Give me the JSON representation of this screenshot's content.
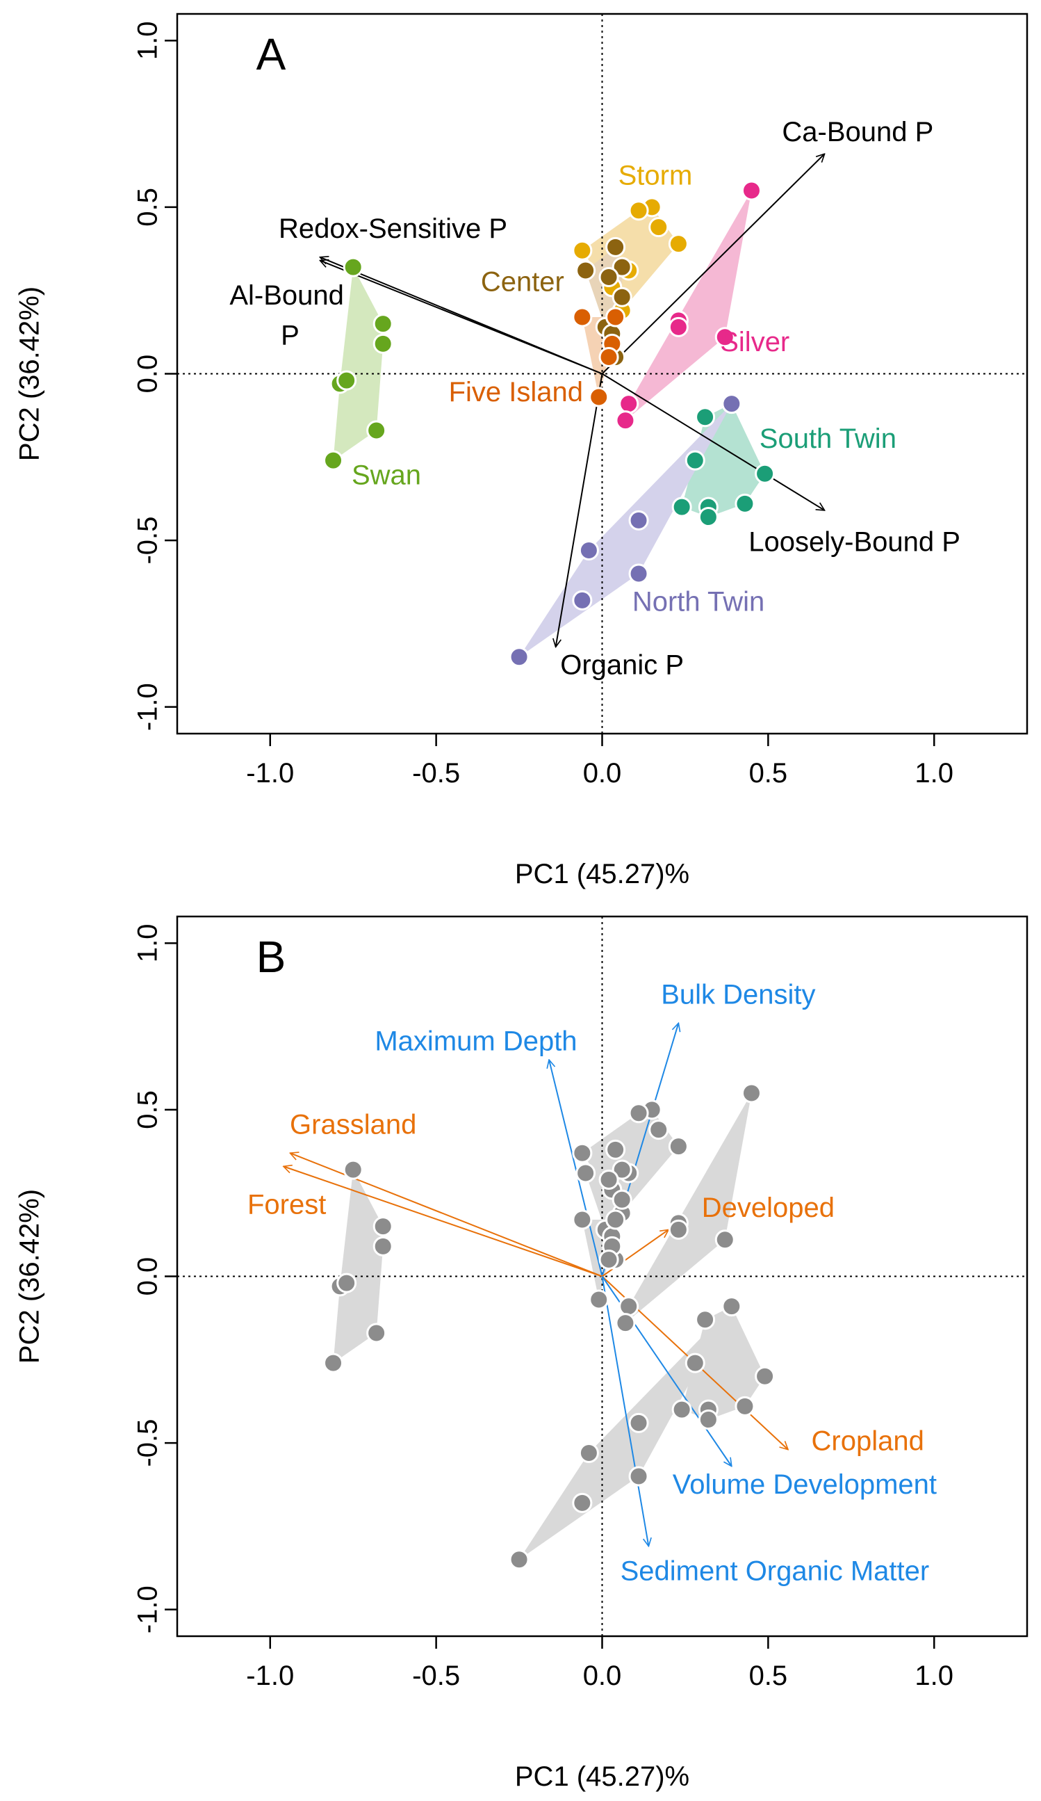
{
  "chart_data": [
    {
      "panel_label": "A",
      "type": "biplot",
      "xlabel": "PC1 (45.27)%",
      "ylabel": "PC2 (36.42%)",
      "xlim": [
        -1.28,
        1.28
      ],
      "ylim": [
        -1.08,
        1.08
      ],
      "xticks": [
        -1.0,
        -0.5,
        0.0,
        0.5,
        1.0
      ],
      "yticks": [
        -1.0,
        -0.5,
        0.0,
        0.5,
        1.0
      ],
      "xtick_labels": [
        "-1.0",
        "-0.5",
        "0.0",
        "0.5",
        "1.0"
      ],
      "ytick_labels": [
        "-1.0",
        "-0.5",
        "0.0",
        "0.5",
        "1.0"
      ],
      "reference_lines": {
        "x": 0,
        "y": 0,
        "style": "dotted"
      },
      "groups": [
        {
          "name": "Storm",
          "color": "#E6AB02",
          "fill": "#F5DEAA",
          "label_at": [
            0.16,
            0.59
          ],
          "points": [
            [
              0.15,
              0.5
            ],
            [
              0.11,
              0.49
            ],
            [
              0.17,
              0.44
            ],
            [
              0.23,
              0.39
            ],
            [
              -0.06,
              0.37
            ],
            [
              0.08,
              0.31
            ],
            [
              0.03,
              0.26
            ],
            [
              0.06,
              0.19
            ]
          ]
        },
        {
          "name": "Center",
          "color": "#8C6310",
          "fill": "#E8D4B8",
          "label_at": [
            -0.24,
            0.27
          ],
          "points": [
            [
              0.04,
              0.38
            ],
            [
              -0.05,
              0.31
            ],
            [
              0.06,
              0.32
            ],
            [
              0.02,
              0.29
            ],
            [
              0.06,
              0.23
            ],
            [
              0.01,
              0.14
            ],
            [
              0.03,
              0.12
            ],
            [
              0.04,
              0.05
            ]
          ]
        },
        {
          "name": "Five Island",
          "color": "#D95F02",
          "fill": "#F5D2B4",
          "label_at": [
            -0.26,
            -0.06
          ],
          "points": [
            [
              -0.06,
              0.17
            ],
            [
              0.04,
              0.17
            ],
            [
              0.03,
              0.09
            ],
            [
              0.02,
              0.05
            ],
            [
              -0.01,
              -0.07
            ]
          ]
        },
        {
          "name": "Silver",
          "color": "#E7298A",
          "fill": "#F5B8D4",
          "label_at": [
            0.46,
            0.09
          ],
          "points": [
            [
              0.45,
              0.55
            ],
            [
              0.23,
              0.16
            ],
            [
              0.23,
              0.14
            ],
            [
              0.37,
              0.11
            ],
            [
              0.08,
              -0.09
            ],
            [
              0.07,
              -0.14
            ]
          ]
        },
        {
          "name": "South Twin",
          "color": "#1B9E77",
          "fill": "#B4E2D2",
          "label_at": [
            0.68,
            -0.2
          ],
          "points": [
            [
              0.39,
              -0.09
            ],
            [
              0.31,
              -0.13
            ],
            [
              0.28,
              -0.26
            ],
            [
              0.49,
              -0.3
            ],
            [
              0.24,
              -0.4
            ],
            [
              0.32,
              -0.4
            ],
            [
              0.32,
              -0.43
            ],
            [
              0.43,
              -0.39
            ]
          ]
        },
        {
          "name": "North Twin",
          "color": "#7570B3",
          "fill": "#D4D2EB",
          "label_at": [
            0.29,
            -0.69
          ],
          "points": [
            [
              0.39,
              -0.09
            ],
            [
              0.11,
              -0.44
            ],
            [
              -0.04,
              -0.53
            ],
            [
              0.11,
              -0.6
            ],
            [
              -0.06,
              -0.68
            ],
            [
              -0.25,
              -0.85
            ]
          ]
        },
        {
          "name": "Swan",
          "color": "#66A61E",
          "fill": "#D4E8BE",
          "label_at": [
            -0.65,
            -0.31
          ],
          "points": [
            [
              -0.75,
              0.32
            ],
            [
              -0.66,
              0.15
            ],
            [
              -0.66,
              0.09
            ],
            [
              -0.79,
              -0.03
            ],
            [
              -0.77,
              -0.02
            ],
            [
              -0.68,
              -0.17
            ],
            [
              -0.81,
              -0.26
            ]
          ]
        }
      ],
      "vectors": [
        {
          "name": "Ca-Bound P",
          "x": 0.67,
          "y": 0.66,
          "color": "#000000",
          "label_at": [
            0.77,
            0.72
          ]
        },
        {
          "name": "Redox-Sensitive P",
          "x": -0.85,
          "y": 0.35,
          "color": "#000000",
          "label_at": [
            -0.63,
            0.43
          ]
        },
        {
          "name": "Al-Bound",
          "x": -0.85,
          "y": 0.34,
          "color": "#000000",
          "label_at": [
            -0.95,
            0.23
          ]
        },
        {
          "name": "P",
          "x": null,
          "y": null,
          "color": "#000000",
          "label_at": [
            -0.94,
            0.11
          ]
        },
        {
          "name": "Loosely-Bound P",
          "x": 0.67,
          "y": -0.41,
          "color": "#000000",
          "label_at": [
            0.76,
            -0.51
          ]
        },
        {
          "name": "Organic P",
          "x": -0.14,
          "y": -0.82,
          "color": "#000000",
          "label_at": [
            0.06,
            -0.88
          ]
        }
      ]
    },
    {
      "panel_label": "B",
      "type": "biplot",
      "xlabel": "PC1 (45.27)%",
      "ylabel": "PC2 (36.42%)",
      "xlim": [
        -1.28,
        1.28
      ],
      "ylim": [
        -1.08,
        1.08
      ],
      "xticks": [
        -1.0,
        -0.5,
        0.0,
        0.5,
        1.0
      ],
      "yticks": [
        -1.0,
        -0.5,
        0.0,
        0.5,
        1.0
      ],
      "xtick_labels": [
        "-1.0",
        "-0.5",
        "0.0",
        "0.5",
        "1.0"
      ],
      "ytick_labels": [
        "-1.0",
        "-0.5",
        "0.0",
        "0.5",
        "1.0"
      ],
      "reference_lines": {
        "x": 0,
        "y": 0,
        "style": "dotted"
      },
      "point_color": "#8C8C8C",
      "hull_fill": "#D9D9D9",
      "groups_same_as_panel_A": true,
      "vectors": [
        {
          "name": "Bulk Density",
          "x": 0.23,
          "y": 0.76,
          "color": "#1E88E5",
          "label_at": [
            0.41,
            0.84
          ]
        },
        {
          "name": "Maximum Depth",
          "x": -0.16,
          "y": 0.65,
          "color": "#1E88E5",
          "label_at": [
            -0.38,
            0.7
          ]
        },
        {
          "name": "Grassland",
          "x": -0.94,
          "y": 0.37,
          "color": "#E8710A",
          "label_at": [
            -0.75,
            0.45
          ]
        },
        {
          "name": "Forest",
          "x": -0.96,
          "y": 0.33,
          "color": "#E8710A",
          "label_at": [
            -0.95,
            0.21
          ]
        },
        {
          "name": "Developed",
          "x": 0.2,
          "y": 0.14,
          "color": "#E8710A",
          "label_at": [
            0.5,
            0.2
          ]
        },
        {
          "name": "Cropland",
          "x": 0.56,
          "y": -0.52,
          "color": "#E8710A",
          "label_at": [
            0.8,
            -0.5
          ]
        },
        {
          "name": "Volume Development",
          "x": 0.39,
          "y": -0.57,
          "color": "#1E88E5",
          "label_at": [
            0.61,
            -0.63
          ]
        },
        {
          "name": "Sediment Organic Matter",
          "x": 0.14,
          "y": -0.81,
          "color": "#1E88E5",
          "label_at": [
            0.52,
            -0.89
          ]
        }
      ]
    }
  ]
}
